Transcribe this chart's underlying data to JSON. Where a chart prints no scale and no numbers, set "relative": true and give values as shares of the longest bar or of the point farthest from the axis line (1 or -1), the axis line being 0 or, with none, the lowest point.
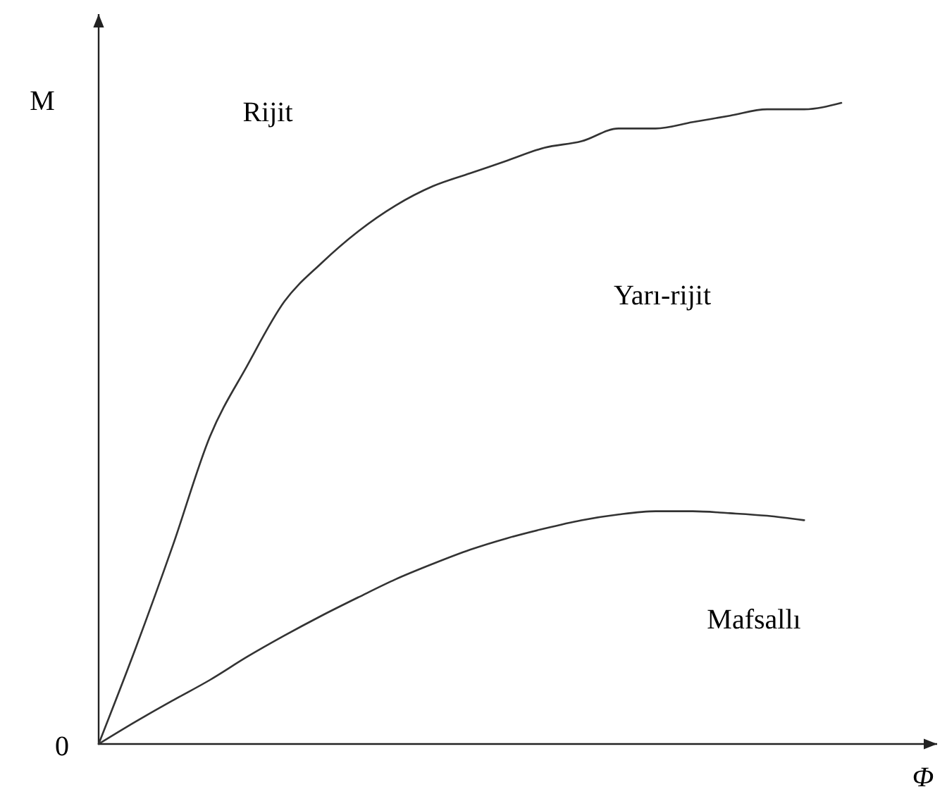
{
  "chart_data": {
    "type": "line",
    "relative": true,
    "xlabel": "Φ",
    "ylabel": "M",
    "annotations": [
      "0",
      "Rijit",
      "Yarı-rijit",
      "Mafsallı"
    ],
    "categories": [
      null,
      null,
      null,
      null,
      null,
      null,
      null,
      null,
      null,
      null,
      null,
      null,
      null,
      null,
      null,
      null,
      null,
      null,
      null,
      null,
      null
    ],
    "series": [
      {
        "color": "#333333",
        "values": [
          0,
          0.15,
          0.31,
          0.48,
          0.59,
          0.69,
          0.75,
          0.8,
          0.84,
          0.87,
          0.89,
          0.91,
          0.93,
          0.94,
          0.96,
          0.96,
          0.97,
          0.98,
          0.99,
          0.99,
          1
        ]
      },
      {
        "color": "#333333",
        "values": [
          0,
          0.035,
          0.068,
          0.1,
          0.136,
          0.169,
          0.2,
          0.229,
          0.257,
          0.281,
          0.303,
          0.321,
          0.336,
          0.349,
          0.358,
          0.363,
          0.363,
          0.36,
          0.356,
          0.349,
          null
        ]
      }
    ],
    "marker": "none",
    "line_style": "solid"
  }
}
